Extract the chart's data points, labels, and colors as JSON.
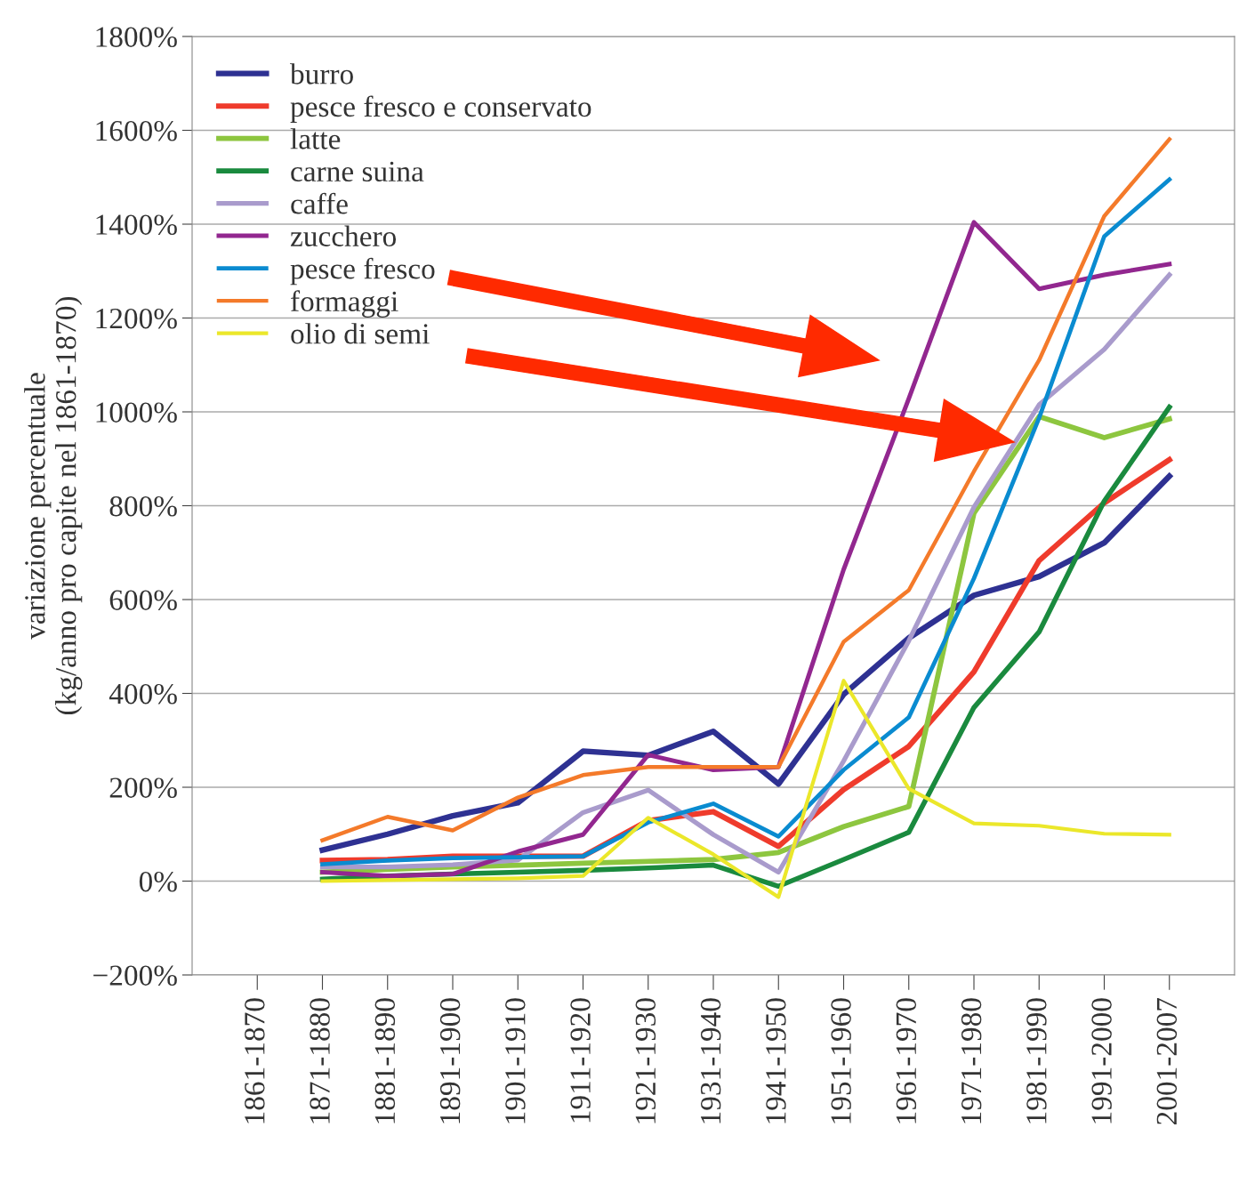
{
  "chart_data": {
    "type": "line",
    "categories": [
      "1861-1870",
      "1871-1880",
      "1881-1890",
      "1891-1900",
      "1901-1910",
      "1911-1920",
      "1921-1930",
      "1931-1940",
      "1941-1950",
      "1951-1960",
      "1961-1970",
      "1971-1980",
      "1981-1990",
      "1991-2000",
      "2001-2007"
    ],
    "ylabel": "variazione percentuale\n(kg/anno pro capite nel 1861-1870)",
    "ylim": [
      -200,
      1800
    ],
    "yticks": [
      {
        "value": -200,
        "label": "−200%"
      },
      {
        "value": 0,
        "label": "0%"
      },
      {
        "value": 200,
        "label": "200%"
      },
      {
        "value": 400,
        "label": "400%"
      },
      {
        "value": 600,
        "label": "600%"
      },
      {
        "value": 800,
        "label": "800%"
      },
      {
        "value": 1000,
        "label": "1000%"
      },
      {
        "value": 1200,
        "label": "1200%"
      },
      {
        "value": 1400,
        "label": "1400%"
      },
      {
        "value": 1600,
        "label": "1600%"
      },
      {
        "value": 1800,
        "label": "1800%"
      }
    ],
    "grid": "y",
    "legend": "top left",
    "marker": "none",
    "line_style": "solid",
    "series": [
      {
        "name": "burro",
        "color": "#2e3192",
        "values": [
          null,
          66,
          100,
          139,
          167,
          277,
          268,
          319,
          207,
          398,
          518,
          609,
          649,
          721,
          863
        ]
      },
      {
        "name": "pesce fresco e conservato",
        "color": "#ef3b2c",
        "values": [
          null,
          44,
          46,
          53,
          53,
          53,
          129,
          148,
          74,
          195,
          287,
          446,
          683,
          806,
          898
        ]
      },
      {
        "name": "latte",
        "color": "#8dc63f",
        "values": [
          null,
          19,
          25,
          30,
          34,
          38,
          42,
          46,
          61,
          116,
          159,
          784,
          990,
          945,
          985
        ]
      },
      {
        "name": "carne suina",
        "color": "#1a8a3e",
        "values": [
          null,
          4,
          11,
          15,
          19,
          23,
          28,
          34,
          -11,
          46,
          104,
          370,
          531,
          810,
          1010
        ]
      },
      {
        "name": "caffe",
        "color": "#a99bcc",
        "values": [
          null,
          30,
          30,
          35,
          45,
          146,
          194,
          99,
          19,
          256,
          512,
          797,
          1015,
          1133,
          1292
        ]
      },
      {
        "name": "zucchero",
        "color": "#92278f",
        "values": [
          null,
          19,
          11,
          15,
          63,
          99,
          269,
          237,
          243,
          664,
          1028,
          1404,
          1262,
          1292,
          1315
        ]
      },
      {
        "name": "pesce fresco",
        "color": "#0a8bd0",
        "values": [
          null,
          36,
          44,
          49,
          51,
          53,
          125,
          165,
          95,
          237,
          349,
          645,
          987,
          1374,
          1495
        ]
      },
      {
        "name": "formaggi",
        "color": "#f47a2a",
        "values": [
          null,
          87,
          137,
          108,
          178,
          226,
          243,
          243,
          243,
          510,
          620,
          873,
          1110,
          1417,
          1581
        ]
      },
      {
        "name": "olio di semi",
        "color": "#ebe72a",
        "values": [
          null,
          0,
          2,
          4,
          6,
          11,
          135,
          57,
          -34,
          427,
          197,
          123,
          118,
          101,
          99
        ]
      }
    ]
  }
}
